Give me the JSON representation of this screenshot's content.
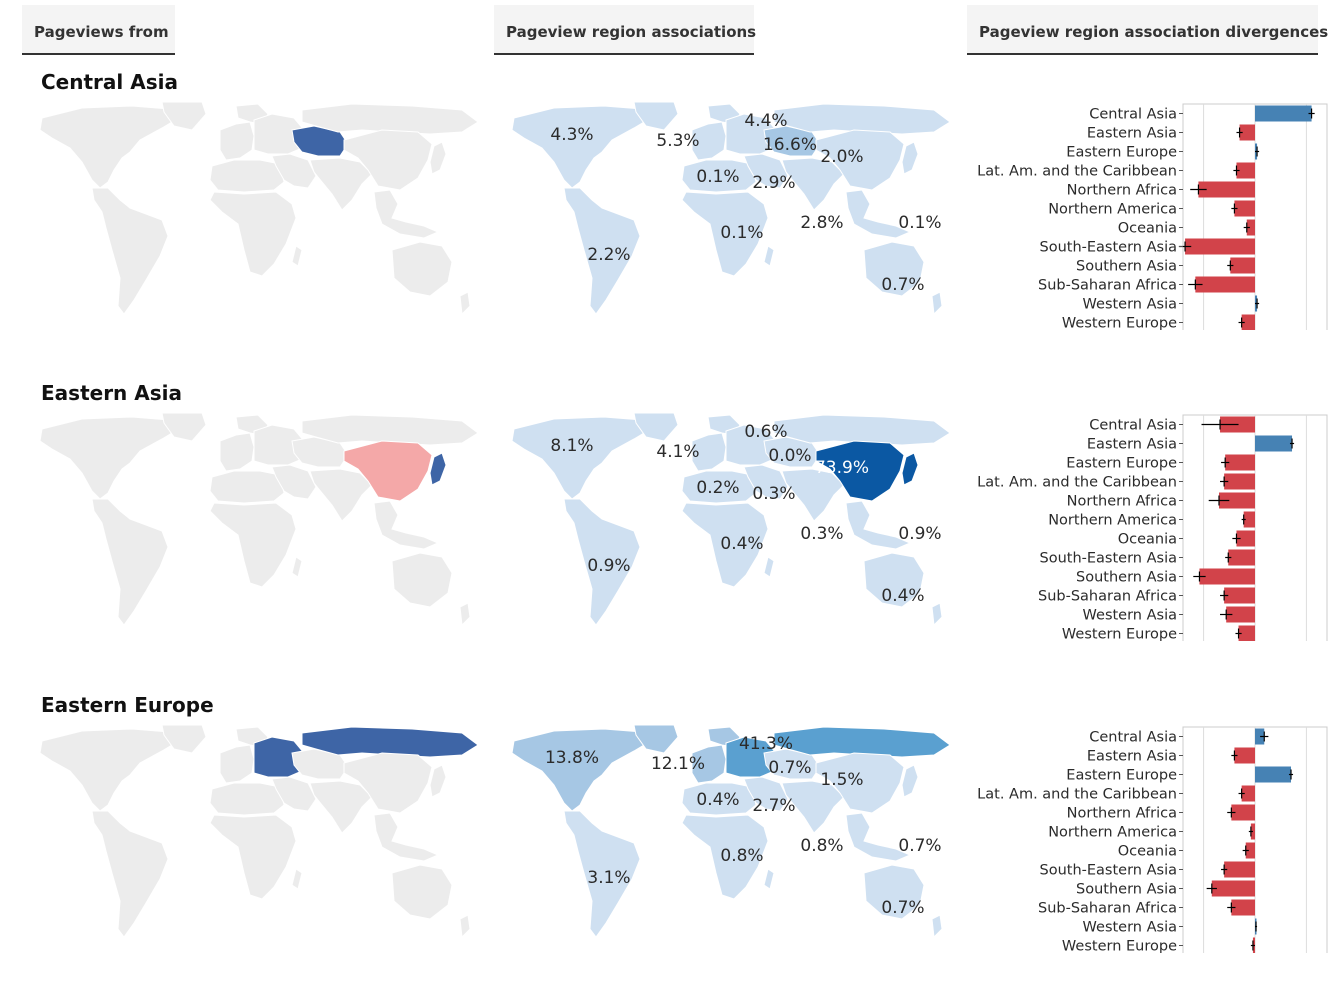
{
  "tabs": {
    "pageviews_from": "Pageviews from",
    "associations": "Pageview region associations",
    "divergences": "Pageview region association divergences"
  },
  "colors": {
    "land": "#ececec",
    "land_stroke": "#ffffff",
    "assoc_light": "#cfe0f1",
    "assoc_mid": "#a6c7e4",
    "assoc_mid2": "#5aa0d0",
    "assoc_dark": "#0b58a3",
    "highlight_blue": "#3e65a6",
    "highlight_pink": "#f4a8a8",
    "highlight_peach": "#fbe1c2",
    "bar_pos": "#4682b4",
    "bar_neg": "#d2434a"
  },
  "chart_data": [
    {
      "type": "bar",
      "orientation": "horizontal",
      "title": "Central Asia",
      "categories": [
        "Central Asia",
        "Eastern Asia",
        "Eastern Europe",
        "Lat. Am. and the Caribbean",
        "Northern Africa",
        "Northern America",
        "Oceania",
        "South-Eastern Asia",
        "Southern Asia",
        "Sub-Saharan Africa",
        "Western Asia",
        "Western Europe"
      ],
      "values": [
        5.5,
        -1.5,
        0.2,
        -1.8,
        -5.5,
        -2.0,
        -0.8,
        -6.8,
        -2.4,
        -5.8,
        0.2,
        -1.3
      ],
      "errors": [
        0.3,
        0.3,
        0.2,
        0.3,
        0.8,
        0.3,
        0.3,
        0.6,
        0.3,
        0.7,
        0.2,
        0.3
      ],
      "xlim": [
        -7,
        7
      ],
      "xticks": [
        "-5.0",
        "0.0",
        "5.0"
      ],
      "map_highlight": "Central Asia",
      "associations": [
        {
          "label": "4.3%",
          "region": "Northern America"
        },
        {
          "label": "5.3%",
          "region": "Western Europe"
        },
        {
          "label": "4.4%",
          "region": "Eastern Europe"
        },
        {
          "label": "16.6%",
          "region": "Central Asia"
        },
        {
          "label": "2.0%",
          "region": "Eastern Asia"
        },
        {
          "label": "0.1%",
          "region": "Northern Africa"
        },
        {
          "label": "2.9%",
          "region": "Western Asia"
        },
        {
          "label": "2.2%",
          "region": "Lat. Am. and the Caribbean"
        },
        {
          "label": "0.1%",
          "region": "Sub-Saharan Africa"
        },
        {
          "label": "2.8%",
          "region": "Southern Asia"
        },
        {
          "label": "0.1%",
          "region": "South-Eastern Asia"
        },
        {
          "label": "0.7%",
          "region": "Oceania"
        }
      ]
    },
    {
      "type": "bar",
      "orientation": "horizontal",
      "title": "Eastern Asia",
      "categories": [
        "Central Asia",
        "Eastern Asia",
        "Eastern Europe",
        "Lat. Am. and the Caribbean",
        "Northern Africa",
        "Northern America",
        "Oceania",
        "South-Eastern Asia",
        "Southern Asia",
        "Sub-Saharan Africa",
        "Western Asia",
        "Western Europe"
      ],
      "values": [
        -3.4,
        3.6,
        -2.9,
        -3.0,
        -3.5,
        -1.1,
        -1.8,
        -2.6,
        -5.4,
        -3.0,
        -2.8,
        -1.6
      ],
      "errors": [
        1.8,
        0.2,
        0.4,
        0.4,
        1.0,
        0.2,
        0.4,
        0.3,
        0.6,
        0.4,
        0.6,
        0.3
      ],
      "xlim": [
        -7,
        7
      ],
      "xticks": [
        "-5.0",
        "0.0",
        "5.0"
      ],
      "map_highlight": "Eastern Asia",
      "associations": [
        {
          "label": "8.1%",
          "region": "Northern America"
        },
        {
          "label": "4.1%",
          "region": "Western Europe"
        },
        {
          "label": "0.6%",
          "region": "Eastern Europe"
        },
        {
          "label": "0.0%",
          "region": "Central Asia"
        },
        {
          "label": "73.9%",
          "region": "Eastern Asia"
        },
        {
          "label": "0.2%",
          "region": "Northern Africa"
        },
        {
          "label": "0.3%",
          "region": "Western Asia"
        },
        {
          "label": "0.9%",
          "region": "Lat. Am. and the Caribbean"
        },
        {
          "label": "0.4%",
          "region": "Sub-Saharan Africa"
        },
        {
          "label": "0.3%",
          "region": "Southern Asia"
        },
        {
          "label": "0.9%",
          "region": "South-Eastern Asia"
        },
        {
          "label": "0.4%",
          "region": "Oceania"
        }
      ]
    },
    {
      "type": "bar",
      "orientation": "horizontal",
      "title": "Eastern Europe",
      "categories": [
        "Central Asia",
        "Eastern Asia",
        "Eastern Europe",
        "Lat. Am. and the Caribbean",
        "Northern Africa",
        "Northern America",
        "Oceania",
        "South-Eastern Asia",
        "Southern Asia",
        "Sub-Saharan Africa",
        "Western Asia",
        "Western Europe"
      ],
      "values": [
        0.9,
        -2.0,
        3.5,
        -1.3,
        -2.3,
        -0.4,
        -0.9,
        -3.0,
        -4.2,
        -2.3,
        0.1,
        -0.2
      ],
      "errors": [
        0.4,
        0.3,
        0.2,
        0.3,
        0.4,
        0.2,
        0.3,
        0.3,
        0.5,
        0.4,
        0.1,
        0.2
      ],
      "xlim": [
        -7,
        7
      ],
      "xticks": [
        "-5.0",
        "0.0",
        "5.0"
      ],
      "map_highlight": "Eastern Europe",
      "associations": [
        {
          "label": "13.8%",
          "region": "Northern America"
        },
        {
          "label": "12.1%",
          "region": "Western Europe"
        },
        {
          "label": "41.3%",
          "region": "Eastern Europe"
        },
        {
          "label": "0.7%",
          "region": "Central Asia"
        },
        {
          "label": "1.5%",
          "region": "Eastern Asia"
        },
        {
          "label": "0.4%",
          "region": "Northern Africa"
        },
        {
          "label": "2.7%",
          "region": "Western Asia"
        },
        {
          "label": "3.1%",
          "region": "Lat. Am. and the Caribbean"
        },
        {
          "label": "0.8%",
          "region": "Sub-Saharan Africa"
        },
        {
          "label": "0.8%",
          "region": "Southern Asia"
        },
        {
          "label": "0.7%",
          "region": "South-Eastern Asia"
        },
        {
          "label": "0.7%",
          "region": "Oceania"
        }
      ]
    }
  ]
}
